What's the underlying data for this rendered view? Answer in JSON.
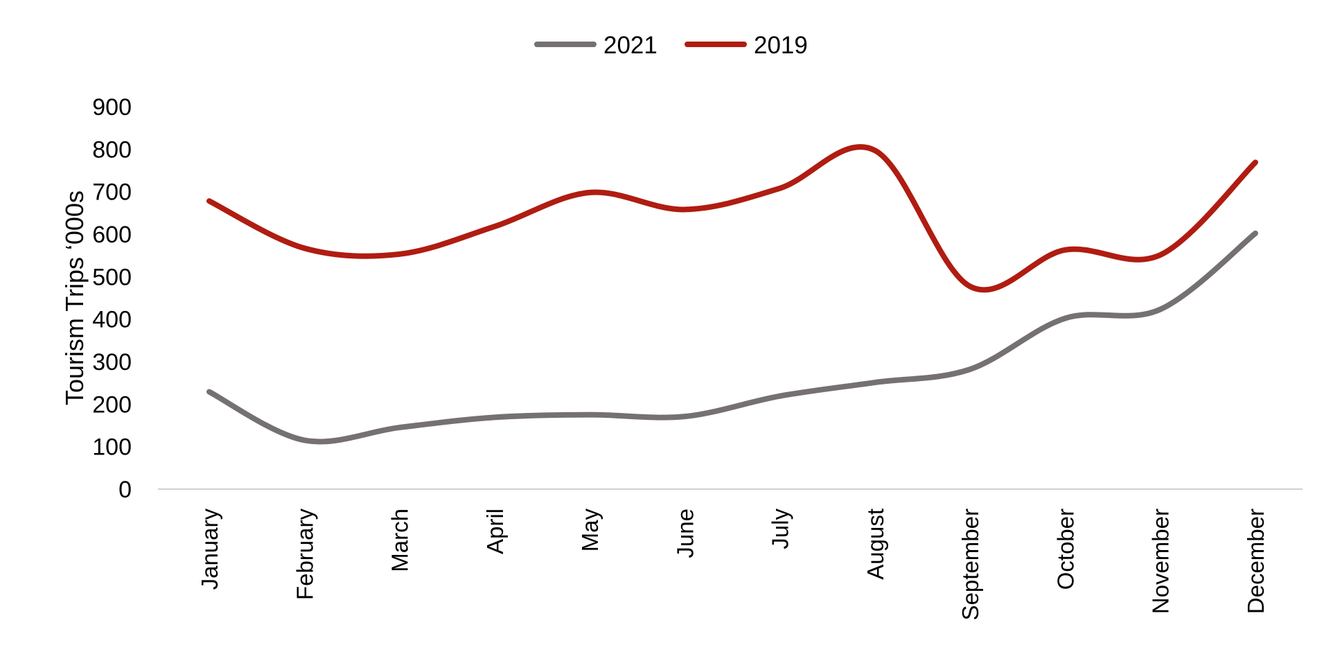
{
  "chart_data": {
    "type": "line",
    "title": "",
    "xlabel": "",
    "ylabel": "Tourism Trips ‘000s",
    "ylim": [
      0,
      900
    ],
    "yticks": [
      "0",
      "100",
      "200",
      "300",
      "400",
      "500",
      "600",
      "700",
      "800",
      "900"
    ],
    "grid": false,
    "legend_position": "top-center",
    "categories": [
      "January",
      "February",
      "March",
      "April",
      "May",
      "June",
      "July",
      "August",
      "September",
      "October",
      "November",
      "December"
    ],
    "series": [
      {
        "name": "2021",
        "color": "#767171",
        "values": [
          229,
          115,
          145,
          169,
          175,
          171,
          219,
          251,
          282,
          402,
          423,
          602
        ]
      },
      {
        "name": "2019",
        "color": "#B01C11",
        "values": [
          678,
          567,
          553,
          618,
          698,
          658,
          708,
          797,
          477,
          563,
          551,
          769
        ]
      }
    ]
  }
}
